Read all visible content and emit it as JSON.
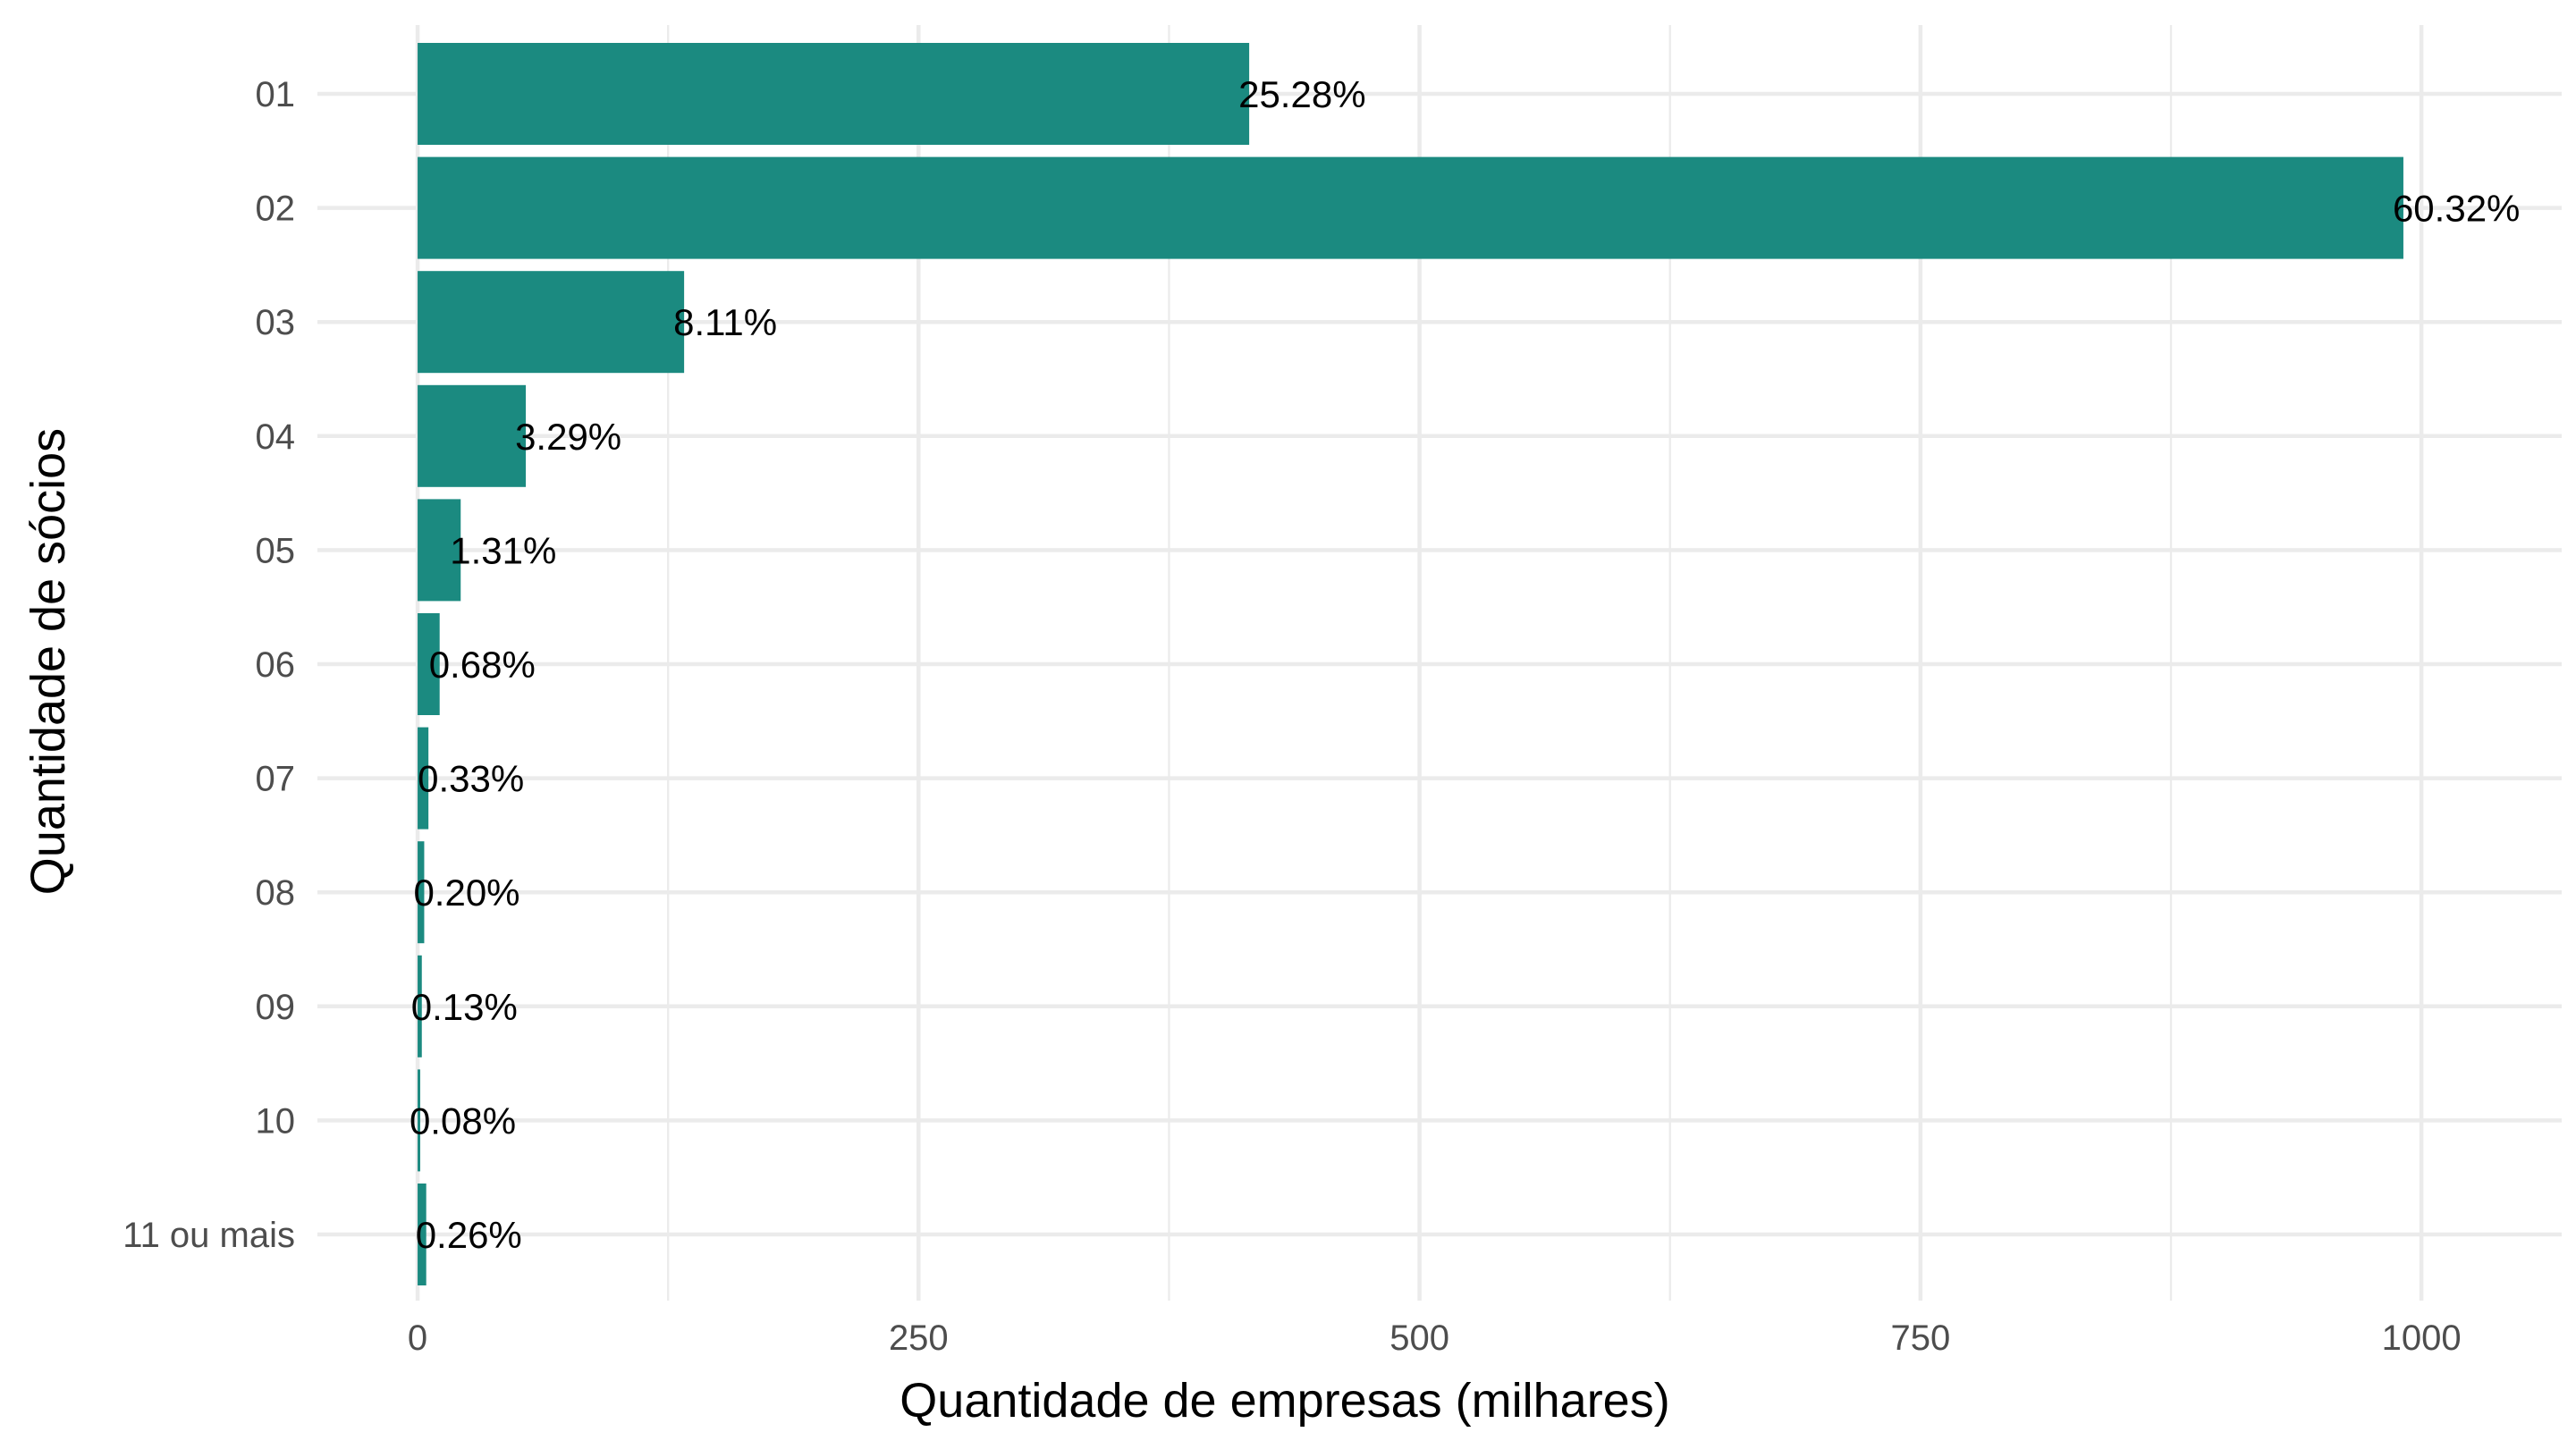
{
  "chart_data": {
    "type": "bar",
    "orientation": "horizontal",
    "xlabel": "Quantidade de empresas (milhares)",
    "ylabel": "Quantidade de sócios",
    "xlim": [
      -50,
      1070
    ],
    "x_ticks": [
      0,
      250,
      500,
      750,
      1000
    ],
    "x_minor_ticks": [
      125,
      375,
      625,
      875
    ],
    "grid": true,
    "bar_color": "#1b8a80",
    "categories": [
      "01",
      "02",
      "03",
      "04",
      "05",
      "06",
      "07",
      "08",
      "09",
      "10",
      "11 ou mais"
    ],
    "values": [
      415,
      991,
      133,
      54,
      21.5,
      11,
      5.4,
      3.3,
      2.1,
      1.3,
      4.3
    ],
    "labels": [
      "25.28%",
      "60.32%",
      "8.11%",
      "3.29%",
      "1.31%",
      "0.68%",
      "0.33%",
      "0.20%",
      "0.13%",
      "0.08%",
      "0.26%"
    ]
  }
}
